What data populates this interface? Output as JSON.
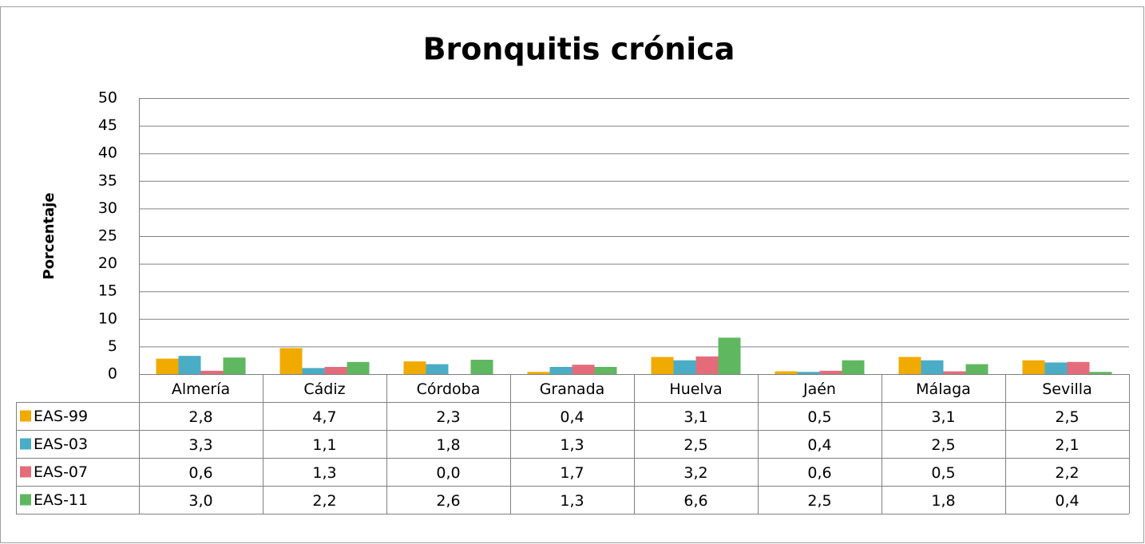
{
  "chart_data": {
    "type": "bar",
    "title": "Bronquitis crónica",
    "y_label": "Porcentaje",
    "categories": [
      "Almería",
      "Cádiz",
      "Córdoba",
      "Granada",
      "Huelva",
      "Jaén",
      "Málaga",
      "Sevilla"
    ],
    "series": [
      {
        "name": "EAS-99",
        "color": "#f0aa00",
        "values": [
          2.8,
          4.7,
          2.3,
          0.4,
          3.1,
          0.5,
          3.1,
          2.5
        ],
        "value_labels": [
          "2,8",
          "4,7",
          "2,3",
          "0,4",
          "3,1",
          "0,5",
          "3,1",
          "2,5"
        ]
      },
      {
        "name": "EAS-03",
        "color": "#4bacc6",
        "values": [
          3.3,
          1.1,
          1.8,
          1.3,
          2.5,
          0.4,
          2.5,
          2.1
        ],
        "value_labels": [
          "3,3",
          "1,1",
          "1,8",
          "1,3",
          "2,5",
          "0,4",
          "2,5",
          "2,1"
        ]
      },
      {
        "name": "EAS-07",
        "color": "#e46c7a",
        "values": [
          0.6,
          1.3,
          0.0,
          1.7,
          3.2,
          0.6,
          0.5,
          2.2
        ],
        "value_labels": [
          "0,6",
          "1,3",
          "0,0",
          "1,7",
          "3,2",
          "0,6",
          "0,5",
          "2,2"
        ]
      },
      {
        "name": "EAS-11",
        "color": "#5fb760",
        "values": [
          3.0,
          2.2,
          2.6,
          1.3,
          6.6,
          2.5,
          1.8,
          0.4
        ],
        "value_labels": [
          "3,0",
          "2,2",
          "2,6",
          "1,3",
          "6,6",
          "2,5",
          "1,8",
          "0,4"
        ]
      }
    ],
    "ylim": [
      0,
      50
    ],
    "yticks": [
      0,
      5,
      10,
      15,
      20,
      25,
      30,
      35,
      40,
      45,
      50
    ],
    "grid": true
  }
}
